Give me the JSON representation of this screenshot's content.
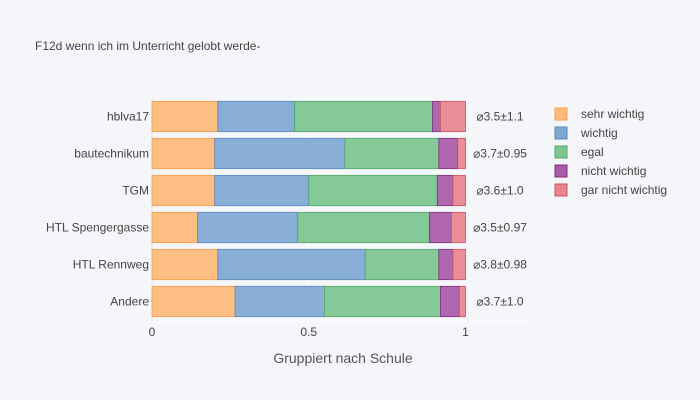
{
  "chart_data": {
    "type": "bar",
    "orientation": "horizontal",
    "stacked": true,
    "title": "F12d wenn ich im Unterricht gelobt werde-",
    "xlabel": "Gruppiert nach Schule",
    "ylabel": "",
    "xlim": [
      0,
      1.2
    ],
    "xticks": [
      {
        "value": 0,
        "label": "0"
      },
      {
        "value": 0.5,
        "label": "0.5"
      },
      {
        "value": 1,
        "label": "1"
      }
    ],
    "grid": true,
    "legend_position": "right",
    "categories": [
      "hblva17",
      "bautechnikum",
      "TGM",
      "HTL Spengergasse",
      "HTL Rennweg",
      "Andere"
    ],
    "series": [
      {
        "name": "sehr wichtig",
        "color": "#fdb97a",
        "edge": "#f59e4a",
        "values": [
          0.21,
          0.2,
          0.2,
          0.145,
          0.21,
          0.265
        ]
      },
      {
        "name": "wichtig",
        "color": "#7ea7d2",
        "edge": "#5a89bd",
        "values": [
          0.245,
          0.415,
          0.3,
          0.32,
          0.47,
          0.285
        ]
      },
      {
        "name": "egal",
        "color": "#7cc490",
        "edge": "#52a86a",
        "values": [
          0.44,
          0.3,
          0.41,
          0.42,
          0.235,
          0.37
        ]
      },
      {
        "name": "nicht wichtig",
        "color": "#a95aa8",
        "edge": "#7e2f7d",
        "values": [
          0.025,
          0.06,
          0.05,
          0.07,
          0.045,
          0.06
        ]
      },
      {
        "name": "gar nicht wichtig",
        "color": "#e88490",
        "edge": "#c95462",
        "values": [
          0.08,
          0.025,
          0.04,
          0.045,
          0.04,
          0.02
        ]
      }
    ],
    "stats": [
      "⌀3.5±1.1",
      "⌀3.7±0.95",
      "⌀3.6±1.0",
      "⌀3.5±0.97",
      "⌀3.8±0.98",
      "⌀3.7±1.0"
    ]
  }
}
